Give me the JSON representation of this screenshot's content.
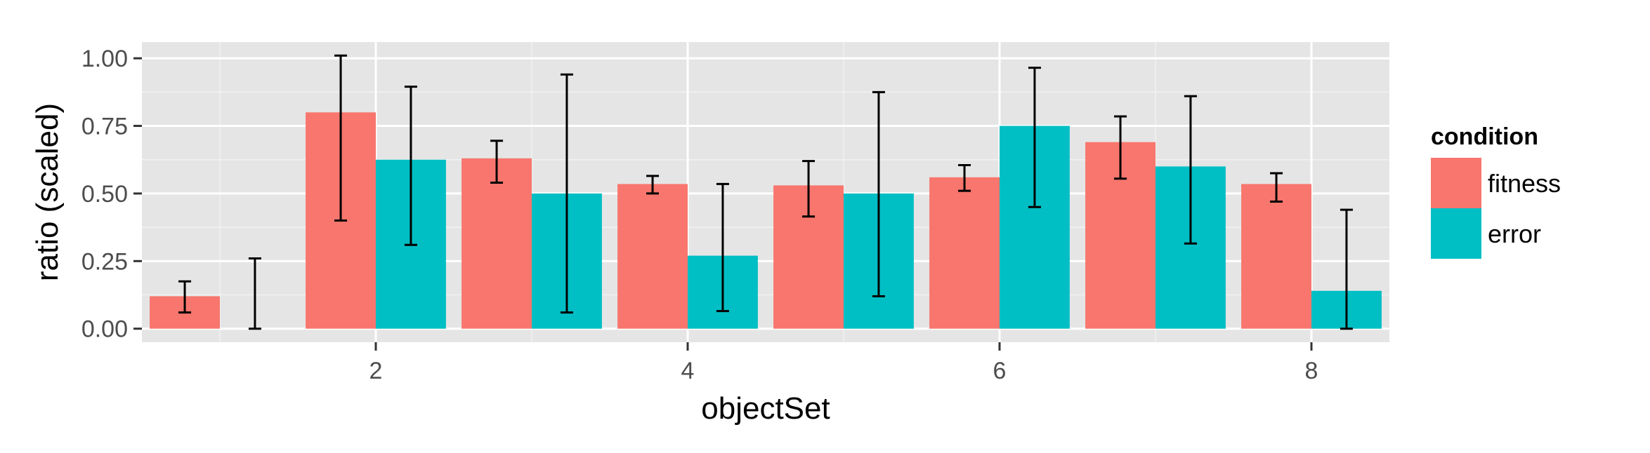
{
  "chart_data": {
    "type": "bar",
    "xlabel": "objectSet",
    "ylabel": "ratio (scaled)",
    "x": [
      1,
      2,
      3,
      4,
      5,
      6,
      7,
      8
    ],
    "xticks": [
      "2",
      "4",
      "6",
      "8"
    ],
    "xtick_values": [
      2,
      4,
      6,
      8
    ],
    "xlim": [
      0.5,
      8.5
    ],
    "ylim": [
      -0.05,
      1.06
    ],
    "yticks": [
      "0.00",
      "0.25",
      "0.50",
      "0.75",
      "1.00"
    ],
    "ytick_values": [
      0,
      0.25,
      0.5,
      0.75,
      1.0
    ],
    "grid": true,
    "legend": {
      "title": "condition",
      "position": "right"
    },
    "series": [
      {
        "name": "fitness",
        "color": "#F8766D",
        "values": [
          0.12,
          0.8,
          0.63,
          0.535,
          0.53,
          0.56,
          0.69,
          0.535
        ],
        "error_low": [
          0.06,
          0.4,
          0.54,
          0.5,
          0.415,
          0.51,
          0.555,
          0.47
        ],
        "error_high": [
          0.175,
          1.01,
          0.695,
          0.565,
          0.62,
          0.605,
          0.785,
          0.575
        ]
      },
      {
        "name": "error",
        "color": "#00BFC4",
        "values": [
          0.0,
          0.625,
          0.5,
          0.27,
          0.5,
          0.75,
          0.6,
          0.14
        ],
        "error_low": [
          0.0,
          0.31,
          0.06,
          0.065,
          0.12,
          0.45,
          0.315,
          0.0
        ],
        "error_high": [
          0.26,
          0.895,
          0.94,
          0.535,
          0.875,
          0.965,
          0.86,
          0.44
        ]
      }
    ]
  }
}
